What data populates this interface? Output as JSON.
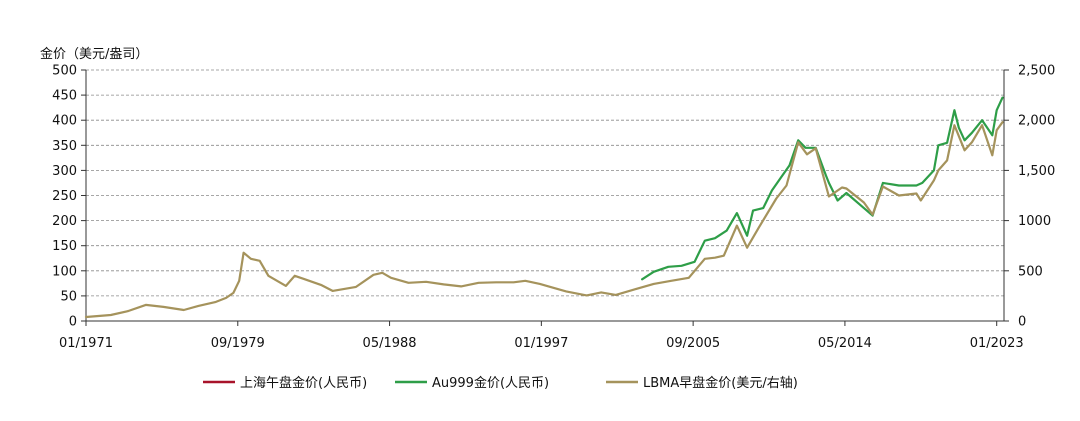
{
  "chart_data": {
    "type": "line",
    "ylabel_left": "金价（美元/盎司）",
    "ylim_left": [
      0,
      500
    ],
    "yticks_left": [
      "0",
      "50",
      "100",
      "150",
      "200",
      "250",
      "300",
      "350",
      "400",
      "450",
      "500"
    ],
    "ylim_right": [
      0,
      2500
    ],
    "yticks_right": [
      "0",
      "500",
      "1000",
      "1,500",
      "2,000",
      "2,500"
    ],
    "x_range": [
      "1971-01",
      "2023-06"
    ],
    "xticks": [
      "01/1971",
      "09/1979",
      "05/1988",
      "01/1997",
      "09/2005",
      "05/2014",
      "01/2023"
    ],
    "grid": "horizontal-dashed",
    "legend_position": "bottom-center",
    "series": [
      {
        "name": "上海午盘金价(人民币)",
        "color": "#a8132a",
        "axis": "left",
        "x": [],
        "y": []
      },
      {
        "name": "Au999金价(人民币)",
        "color": "#2e9e48",
        "axis": "left",
        "x": [
          "2002-10",
          "2003-06",
          "2004-04",
          "2005-01",
          "2005-10",
          "2006-05",
          "2006-12",
          "2007-08",
          "2008-03",
          "2008-10",
          "2009-02",
          "2009-09",
          "2010-03",
          "2010-09",
          "2011-03",
          "2011-09",
          "2012-02",
          "2012-09",
          "2013-04",
          "2013-06",
          "2013-12",
          "2014-06",
          "2015-06",
          "2015-12",
          "2016-07",
          "2017-06",
          "2018-06",
          "2018-10",
          "2019-06",
          "2019-09",
          "2020-03",
          "2020-08",
          "2020-11",
          "2021-03",
          "2021-08",
          "2022-03",
          "2022-10",
          "2023-01",
          "2023-05"
        ],
        "y": [
          83,
          98,
          108,
          110,
          118,
          160,
          165,
          180,
          215,
          170,
          220,
          225,
          260,
          285,
          310,
          360,
          345,
          345,
          290,
          275,
          240,
          255,
          225,
          210,
          275,
          270,
          270,
          275,
          300,
          350,
          355,
          420,
          385,
          360,
          375,
          400,
          370,
          420,
          445
        ]
      },
      {
        "name": "LBMA早盘金价(美元/右轴)",
        "color": "#a5935c",
        "axis": "right",
        "x": [
          "1971-01",
          "1972-06",
          "1973-06",
          "1974-06",
          "1975-06",
          "1976-08",
          "1977-06",
          "1978-06",
          "1979-01",
          "1979-06",
          "1979-10",
          "1980-01",
          "1980-06",
          "1980-12",
          "1981-06",
          "1982-06",
          "1982-12",
          "1983-06",
          "1984-06",
          "1985-02",
          "1986-06",
          "1987-06",
          "1987-12",
          "1988-06",
          "1989-06",
          "1990-06",
          "1991-06",
          "1992-06",
          "1993-06",
          "1994-06",
          "1995-06",
          "1996-02",
          "1996-12",
          "1997-06",
          "1998-06",
          "1999-08",
          "2000-06",
          "2001-04",
          "2002-06",
          "2003-06",
          "2004-06",
          "2005-06",
          "2006-05",
          "2006-12",
          "2007-06",
          "2008-03",
          "2008-10",
          "2009-06",
          "2010-06",
          "2011-01",
          "2011-09",
          "2012-03",
          "2012-09",
          "2013-06",
          "2014-03",
          "2014-06",
          "2015-06",
          "2015-12",
          "2016-07",
          "2017-06",
          "2018-06",
          "2018-09",
          "2019-06",
          "2019-09",
          "2020-03",
          "2020-08",
          "2021-03",
          "2021-08",
          "2022-03",
          "2022-10",
          "2023-01",
          "2023-05"
        ],
        "y": [
          40,
          60,
          100,
          160,
          140,
          110,
          150,
          190,
          230,
          280,
          400,
          680,
          620,
          600,
          450,
          350,
          450,
          420,
          360,
          300,
          340,
          460,
          480,
          430,
          380,
          390,
          365,
          345,
          380,
          385,
          385,
          400,
          370,
          345,
          295,
          255,
          285,
          260,
          320,
          370,
          400,
          430,
          620,
          630,
          650,
          950,
          730,
          930,
          1220,
          1350,
          1780,
          1660,
          1720,
          1240,
          1330,
          1320,
          1180,
          1060,
          1340,
          1250,
          1270,
          1200,
          1400,
          1500,
          1600,
          1950,
          1700,
          1780,
          1950,
          1650,
          1900,
          1980
        ]
      }
    ]
  }
}
